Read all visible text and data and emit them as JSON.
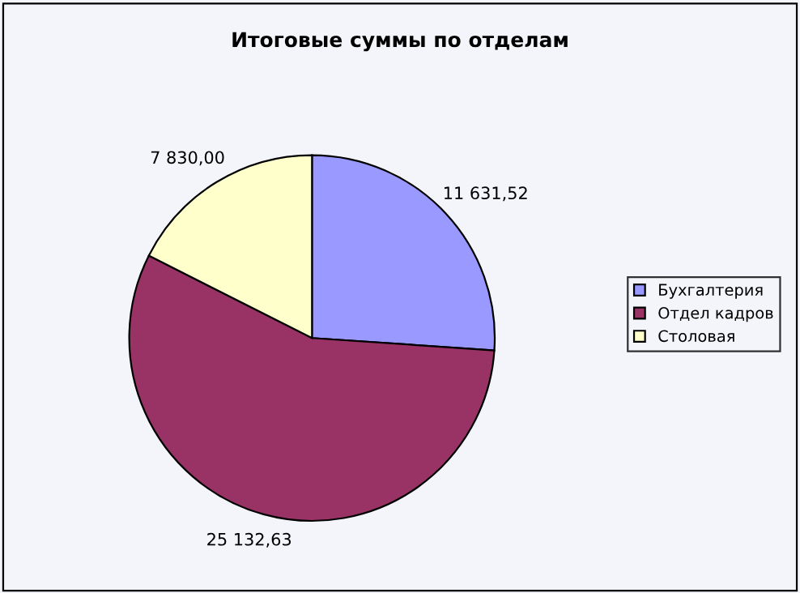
{
  "chart_data": {
    "type": "pie",
    "title": "Итоговые суммы по отделам",
    "categories": [
      "Бухгалтерия",
      "Отдел кадров",
      "Столовая"
    ],
    "values": [
      11631.52,
      25132.63,
      7830.0
    ],
    "value_labels": [
      "11 631,52",
      "25 132,63",
      "7 830,00"
    ],
    "colors": [
      "#9999ff",
      "#993366",
      "#ffffcc"
    ],
    "legend": "right"
  }
}
